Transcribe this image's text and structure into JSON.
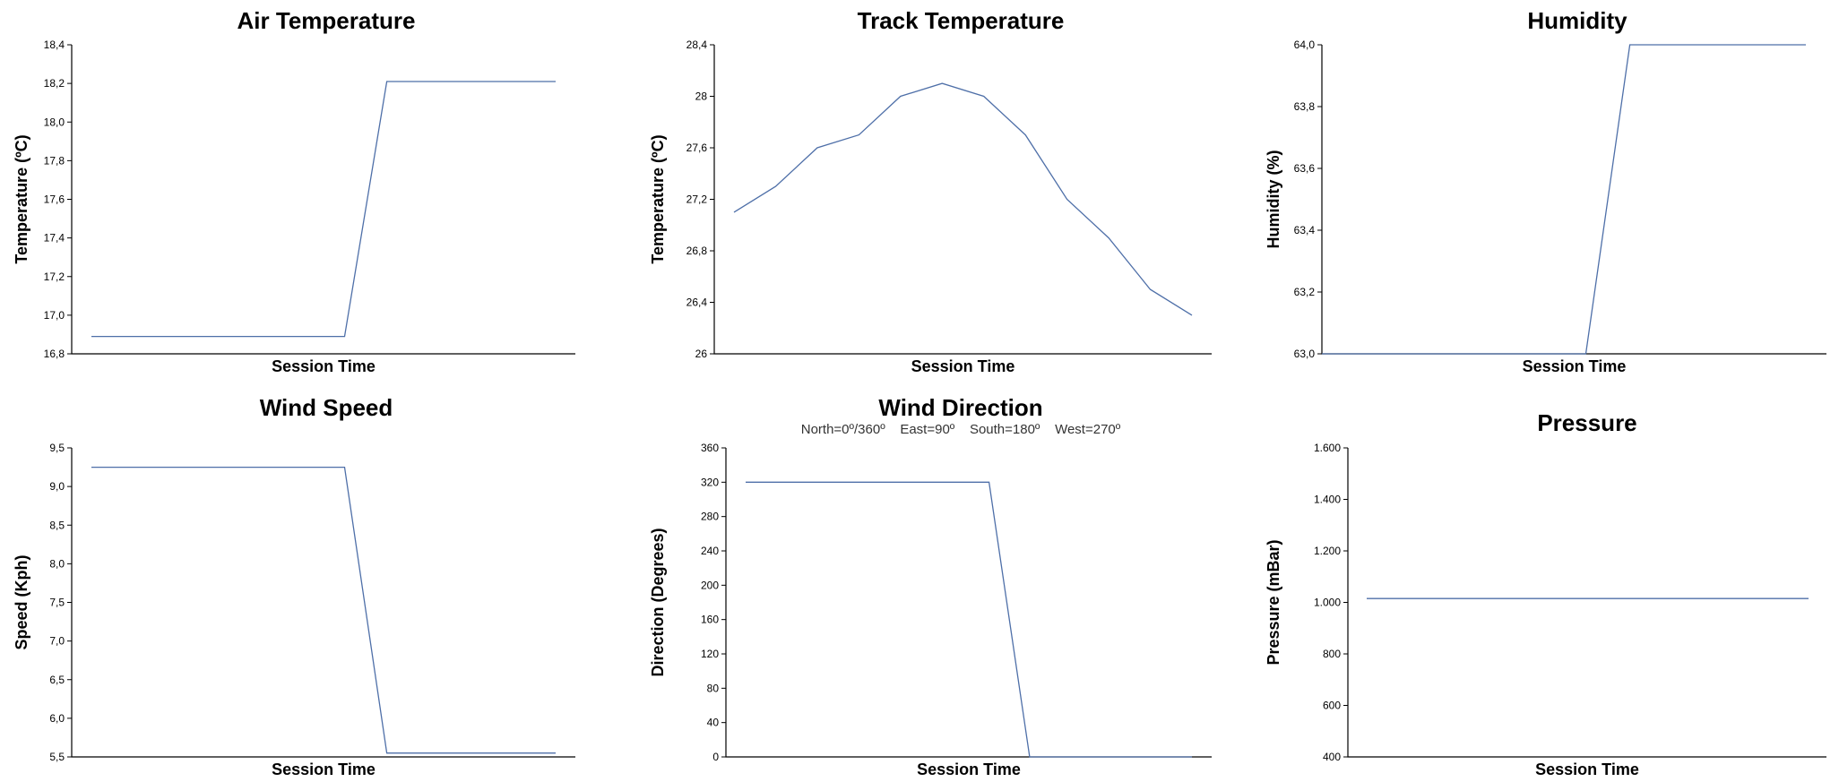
{
  "chart_data": [
    {
      "type": "line",
      "title": "Air Temperature",
      "subtitle": "",
      "xlabel": "Session Time",
      "ylabel": "Temperature (ºC)",
      "ylim": [
        16.8,
        18.4
      ],
      "yticks": [
        "16,8",
        "17,0",
        "17,2",
        "17,4",
        "17,6",
        "17,8",
        "18,0",
        "18,2",
        "18,4"
      ],
      "ytick_values": [
        16.8,
        17.0,
        17.2,
        17.4,
        17.6,
        17.8,
        18.0,
        18.2,
        18.4
      ],
      "x": [
        0,
        1,
        2,
        3,
        4,
        5,
        6,
        7,
        8,
        9,
        10,
        11
      ],
      "values": [
        16.89,
        16.89,
        16.89,
        16.89,
        16.89,
        16.89,
        16.89,
        18.21,
        18.21,
        18.21,
        18.21,
        18.21
      ],
      "grid": false
    },
    {
      "type": "line",
      "title": "Track Temperature",
      "subtitle": "",
      "xlabel": "Session Time",
      "ylabel": "Temperature (ºC)",
      "ylim": [
        26,
        28.4
      ],
      "yticks": [
        "26",
        "26,4",
        "26,8",
        "27,2",
        "27,6",
        "28",
        "28,4"
      ],
      "ytick_values": [
        26,
        26.4,
        26.8,
        27.2,
        27.6,
        28,
        28.4
      ],
      "x": [
        0,
        1,
        2,
        3,
        4,
        5,
        6,
        7,
        8,
        9,
        10,
        11
      ],
      "values": [
        27.1,
        27.3,
        27.6,
        27.7,
        28.0,
        28.1,
        28.0,
        27.7,
        27.2,
        26.9,
        26.5,
        26.3
      ],
      "grid": false
    },
    {
      "type": "line",
      "title": "Humidity",
      "subtitle": "",
      "xlabel": "Session Time",
      "ylabel": "Humidity (%)",
      "ylim": [
        63.0,
        64.0
      ],
      "yticks": [
        "63,0",
        "63,2",
        "63,4",
        "63,6",
        "63,8",
        "64,0"
      ],
      "ytick_values": [
        63.0,
        63.2,
        63.4,
        63.6,
        63.8,
        64.0
      ],
      "x": [
        0,
        1,
        2,
        3,
        4,
        5,
        6,
        7,
        8,
        9,
        10,
        11
      ],
      "values": [
        63.0,
        63.0,
        63.0,
        63.0,
        63.0,
        63.0,
        63.0,
        64.0,
        64.0,
        64.0,
        64.0,
        64.0
      ],
      "grid": false
    },
    {
      "type": "line",
      "title": "Wind Speed",
      "subtitle": "",
      "xlabel": "Session Time",
      "ylabel": "Speed (Kph)",
      "ylim": [
        5.5,
        9.5
      ],
      "yticks": [
        "5,5",
        "6,0",
        "6,5",
        "7,0",
        "7,5",
        "8,0",
        "8,5",
        "9,0",
        "9,5"
      ],
      "ytick_values": [
        5.5,
        6.0,
        6.5,
        7.0,
        7.5,
        8.0,
        8.5,
        9.0,
        9.5
      ],
      "x": [
        0,
        1,
        2,
        3,
        4,
        5,
        6,
        7,
        8,
        9,
        10,
        11
      ],
      "values": [
        9.25,
        9.25,
        9.25,
        9.25,
        9.25,
        9.25,
        9.25,
        5.55,
        5.55,
        5.55,
        5.55,
        5.55
      ],
      "grid": false
    },
    {
      "type": "line",
      "title": "Wind Direction",
      "subtitle": "North=0º/360º    East=90º    South=180º    West=270º",
      "xlabel": "Session Time",
      "ylabel": "Direction (Degrees)",
      "ylim": [
        0,
        360
      ],
      "yticks": [
        "0",
        "40",
        "80",
        "120",
        "160",
        "200",
        "240",
        "280",
        "320",
        "360"
      ],
      "ytick_values": [
        0,
        40,
        80,
        120,
        160,
        200,
        240,
        280,
        320,
        360
      ],
      "x": [
        0,
        1,
        2,
        3,
        4,
        5,
        6,
        7,
        8,
        9,
        10,
        11
      ],
      "values": [
        320,
        320,
        320,
        320,
        320,
        320,
        320,
        0,
        0,
        0,
        0,
        0
      ],
      "grid": false
    },
    {
      "type": "line",
      "title": "Pressure",
      "subtitle": "",
      "xlabel": "Session Time",
      "ylabel": "Pressure (mBar)",
      "ylim": [
        400,
        1600
      ],
      "yticks": [
        "400",
        "600",
        "800",
        "1.000",
        "1.200",
        "1.400",
        "1.600"
      ],
      "ytick_values": [
        400,
        600,
        800,
        1000,
        1200,
        1400,
        1600
      ],
      "x": [
        0,
        1,
        2,
        3,
        4,
        5,
        6,
        7,
        8,
        9,
        10,
        11
      ],
      "values": [
        1015,
        1015,
        1015,
        1015,
        1015,
        1015,
        1015,
        1015,
        1015,
        1015,
        1015,
        1015
      ],
      "grid": false
    }
  ]
}
